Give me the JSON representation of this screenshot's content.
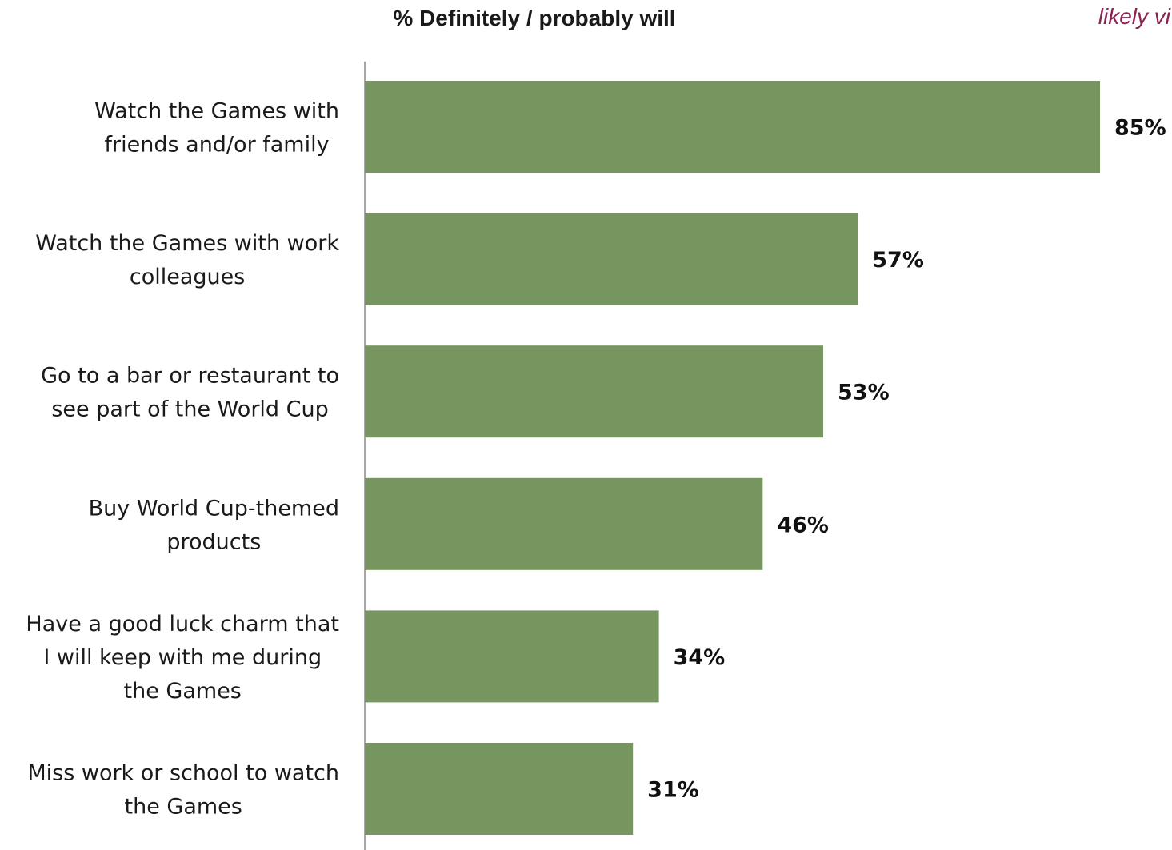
{
  "chart_data": {
    "type": "bar",
    "orientation": "horizontal",
    "title": "% Definitely / probably will",
    "corner_note": "likely vi",
    "categories": [
      "Watch the Games with friends and/or family",
      "Watch the Games with work colleagues",
      "Go to a bar or restaurant to see part of the World Cup",
      "Buy World Cup-themed products",
      "Have a good luck charm that I will keep with me during the Games",
      "Miss work or school to watch the Games"
    ],
    "category_lines": [
      [
        "Watch the Games with",
        "friends and/or family"
      ],
      [
        "Watch the Games with work",
        "colleagues"
      ],
      [
        "Go to a bar or restaurant to",
        "see part of the World Cup"
      ],
      [
        "Buy World Cup-themed",
        "products"
      ],
      [
        "Have a good luck charm that",
        "I will keep with me during",
        "the Games"
      ],
      [
        "Miss work or school to watch",
        "the Games"
      ]
    ],
    "values": [
      85,
      57,
      53,
      46,
      34,
      31
    ],
    "value_labels": [
      "85%",
      "57%",
      "53%",
      "46%",
      "34%",
      "31%"
    ],
    "xlim": [
      0,
      100
    ],
    "grid": false,
    "legend": "none",
    "colors": {
      "bar": "#77965f",
      "axis": "#888888",
      "corner_note": "#8b2252"
    }
  }
}
